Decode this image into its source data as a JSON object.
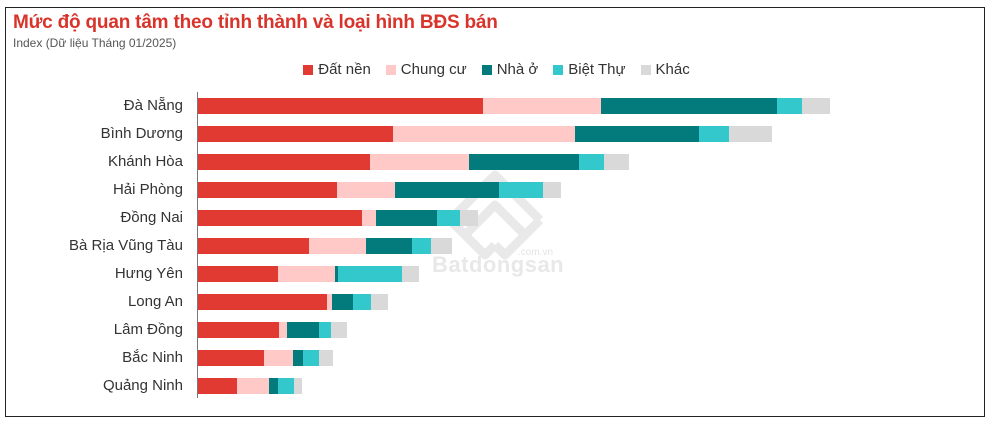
{
  "header": {
    "title": "Mức độ quan tâm theo tỉnh thành và loại hình BĐS bán",
    "subtitle": "Index (Dữ liệu Tháng 01/2025)"
  },
  "legend": [
    {
      "label": "Đất nền",
      "color": "#E03A33"
    },
    {
      "label": "Chung cư",
      "color": "#FFC9C7"
    },
    {
      "label": "Nhà ở",
      "color": "#037A7C"
    },
    {
      "label": "Biệt Thự",
      "color": "#33C9CC"
    },
    {
      "label": "Khác",
      "color": "#D9D9D9"
    }
  ],
  "watermark": {
    "brand": "Batdongsan",
    "domain": ".com.vn"
  },
  "chart_data": {
    "type": "bar",
    "orientation": "horizontal",
    "stacked": true,
    "title": "Mức độ quan tâm theo tỉnh thành và loại hình BĐS bán",
    "subtitle": "Index (Dữ liệu Tháng 01/2025)",
    "xlabel": "",
    "ylabel": "",
    "grid": false,
    "legend_position": "top",
    "note": "No x-axis ticks shown; values are relative index units estimated from bar lengths (1 unit = 1px).",
    "xlim": [
      0,
      650
    ],
    "categories": [
      "Đà Nẵng",
      "Bình Dương",
      "Khánh Hòa",
      "Hải Phòng",
      "Đồng Nai",
      "Bà Rịa Vũng Tàu",
      "Hưng Yên",
      "Long An",
      "Lâm Đồng",
      "Bắc Ninh",
      "Quảng Ninh"
    ],
    "series": [
      {
        "name": "Đất nền",
        "color": "#E03A33",
        "values": [
          285,
          195,
          172,
          139,
          164,
          111,
          80,
          129,
          81,
          66,
          39
        ]
      },
      {
        "name": "Chung cư",
        "color": "#FFC9C7",
        "values": [
          118,
          182,
          99,
          58,
          14,
          57,
          57,
          5,
          8,
          29,
          32
        ]
      },
      {
        "name": "Nhà ở",
        "color": "#037A7C",
        "values": [
          176,
          124,
          110,
          104,
          61,
          46,
          3,
          21,
          32,
          10,
          9
        ]
      },
      {
        "name": "Biệt Thự",
        "color": "#33C9CC",
        "values": [
          25,
          30,
          25,
          44,
          23,
          19,
          64,
          18,
          12,
          16,
          16
        ]
      },
      {
        "name": "Khác",
        "color": "#D9D9D9",
        "values": [
          28,
          43,
          25,
          18,
          18,
          21,
          17,
          17,
          16,
          14,
          8
        ]
      }
    ]
  }
}
